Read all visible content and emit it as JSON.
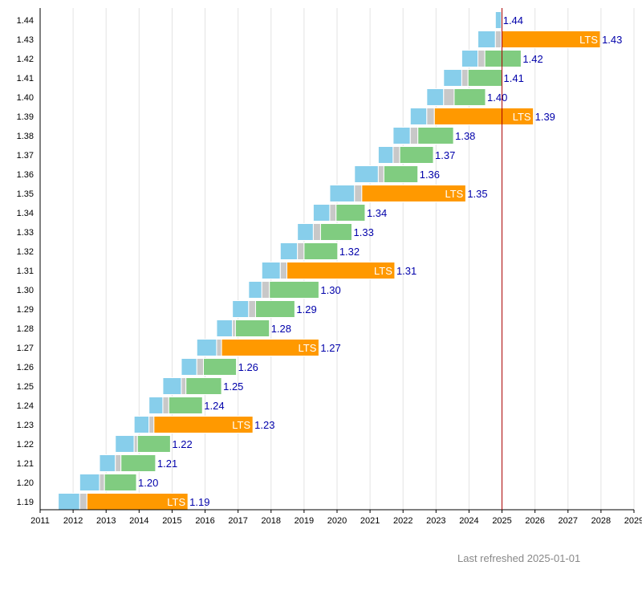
{
  "chart_data": {
    "type": "bar",
    "subtype": "release-timeline-gantt",
    "x_axis": {
      "type": "year",
      "range": [
        2011,
        2029
      ],
      "tick_labels": [
        "2011",
        "2012",
        "2013",
        "2014",
        "2015",
        "2016",
        "2017",
        "2018",
        "2019",
        "2020",
        "2021",
        "2022",
        "2023",
        "2024",
        "2025",
        "2026",
        "2027",
        "2028",
        "2029"
      ]
    },
    "grid": "vertical",
    "current_date": 2025.0,
    "phase_colors": {
      "development": "#87ceeb",
      "freeze": "#c8c8c8",
      "supported": "#80cc80",
      "lts": "#ff9900",
      "today_line": "#aa0000"
    },
    "lts_label": "LTS",
    "versions": [
      {
        "name": "1.19",
        "dev": [
          2011.55,
          2012.2
        ],
        "freeze": [
          2012.2,
          2012.42
        ],
        "support": [
          2012.42,
          2015.48
        ],
        "lts": true
      },
      {
        "name": "1.20",
        "dev": [
          2012.2,
          2012.8
        ],
        "freeze": [
          2012.8,
          2012.95
        ],
        "support": [
          2012.95,
          2013.92
        ],
        "lts": false
      },
      {
        "name": "1.21",
        "dev": [
          2012.8,
          2013.28
        ],
        "freeze": [
          2013.28,
          2013.45
        ],
        "support": [
          2013.45,
          2014.5
        ],
        "lts": false
      },
      {
        "name": "1.22",
        "dev": [
          2013.28,
          2013.85
        ],
        "freeze": [
          2013.85,
          2013.95
        ],
        "support": [
          2013.95,
          2014.95
        ],
        "lts": false
      },
      {
        "name": "1.23",
        "dev": [
          2013.85,
          2014.3
        ],
        "freeze": [
          2014.3,
          2014.45
        ],
        "support": [
          2014.45,
          2017.45
        ],
        "lts": true
      },
      {
        "name": "1.24",
        "dev": [
          2014.3,
          2014.72
        ],
        "freeze": [
          2014.72,
          2014.9
        ],
        "support": [
          2014.9,
          2015.92
        ],
        "lts": false
      },
      {
        "name": "1.25",
        "dev": [
          2014.72,
          2015.28
        ],
        "freeze": [
          2015.28,
          2015.42
        ],
        "support": [
          2015.42,
          2016.5
        ],
        "lts": false
      },
      {
        "name": "1.26",
        "dev": [
          2015.28,
          2015.75
        ],
        "freeze": [
          2015.75,
          2015.95
        ],
        "support": [
          2015.95,
          2016.95
        ],
        "lts": false
      },
      {
        "name": "1.27",
        "dev": [
          2015.75,
          2016.35
        ],
        "freeze": [
          2016.35,
          2016.5
        ],
        "support": [
          2016.5,
          2019.45
        ],
        "lts": true
      },
      {
        "name": "1.28",
        "dev": [
          2016.35,
          2016.83
        ],
        "freeze": [
          2016.83,
          2016.92
        ],
        "support": [
          2016.92,
          2017.95
        ],
        "lts": false
      },
      {
        "name": "1.29",
        "dev": [
          2016.83,
          2017.32
        ],
        "freeze": [
          2017.32,
          2017.53
        ],
        "support": [
          2017.53,
          2018.72
        ],
        "lts": false
      },
      {
        "name": "1.30",
        "dev": [
          2017.32,
          2017.72
        ],
        "freeze": [
          2017.72,
          2017.95
        ],
        "support": [
          2017.95,
          2019.45
        ],
        "lts": false
      },
      {
        "name": "1.31",
        "dev": [
          2017.72,
          2018.28
        ],
        "freeze": [
          2018.28,
          2018.48
        ],
        "support": [
          2018.48,
          2021.75
        ],
        "lts": true
      },
      {
        "name": "1.32",
        "dev": [
          2018.28,
          2018.8
        ],
        "freeze": [
          2018.8,
          2019.0
        ],
        "support": [
          2019.0,
          2020.02
        ],
        "lts": false
      },
      {
        "name": "1.33",
        "dev": [
          2018.8,
          2019.28
        ],
        "freeze": [
          2019.28,
          2019.5
        ],
        "support": [
          2019.5,
          2020.45
        ],
        "lts": false
      },
      {
        "name": "1.34",
        "dev": [
          2019.28,
          2019.78
        ],
        "freeze": [
          2019.78,
          2019.97
        ],
        "support": [
          2019.97,
          2020.85
        ],
        "lts": false
      },
      {
        "name": "1.35",
        "dev": [
          2019.78,
          2020.53
        ],
        "freeze": [
          2020.53,
          2020.75
        ],
        "support": [
          2020.75,
          2023.9
        ],
        "lts": true
      },
      {
        "name": "1.36",
        "dev": [
          2020.53,
          2021.25
        ],
        "freeze": [
          2021.25,
          2021.42
        ],
        "support": [
          2021.42,
          2022.45
        ],
        "lts": false
      },
      {
        "name": "1.37",
        "dev": [
          2021.25,
          2021.7
        ],
        "freeze": [
          2021.7,
          2021.9
        ],
        "support": [
          2021.9,
          2022.92
        ],
        "lts": false
      },
      {
        "name": "1.38",
        "dev": [
          2021.7,
          2022.22
        ],
        "freeze": [
          2022.22,
          2022.45
        ],
        "support": [
          2022.45,
          2023.53
        ],
        "lts": false
      },
      {
        "name": "1.39",
        "dev": [
          2022.22,
          2022.72
        ],
        "freeze": [
          2022.72,
          2022.95
        ],
        "support": [
          2022.95,
          2025.95
        ],
        "lts": true
      },
      {
        "name": "1.40",
        "dev": [
          2022.72,
          2023.23
        ],
        "freeze": [
          2023.23,
          2023.55
        ],
        "support": [
          2023.55,
          2024.5
        ],
        "lts": false
      },
      {
        "name": "1.41",
        "dev": [
          2023.23,
          2023.78
        ],
        "freeze": [
          2023.78,
          2023.97
        ],
        "support": [
          2023.97,
          2025.0
        ],
        "lts": false
      },
      {
        "name": "1.42",
        "dev": [
          2023.78,
          2024.27
        ],
        "freeze": [
          2024.27,
          2024.48
        ],
        "support": [
          2024.48,
          2025.58
        ],
        "lts": false
      },
      {
        "name": "1.43",
        "dev": [
          2024.27,
          2024.8
        ],
        "freeze": [
          2024.8,
          2024.98
        ],
        "support": [
          2024.98,
          2027.98
        ],
        "lts": true
      },
      {
        "name": "1.44",
        "dev": [
          2024.8,
          2024.98
        ],
        "freeze": null,
        "support": null,
        "lts": false
      }
    ]
  },
  "footer": {
    "last_refreshed": "Last refreshed 2025-01-01"
  }
}
